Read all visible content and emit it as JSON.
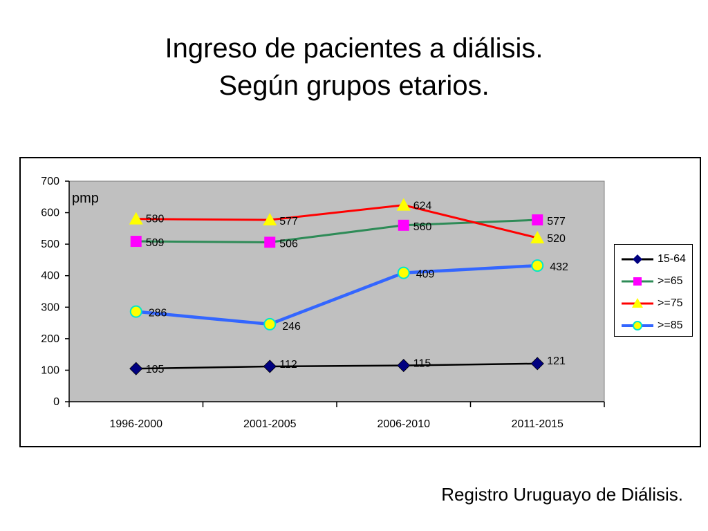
{
  "page": {
    "title_line1": "Ingreso de pacientes a diálisis.",
    "title_line2": "Según grupos etarios.",
    "source": "Registro Uruguayo de Diálisis."
  },
  "chart_data": {
    "type": "line",
    "ylabel": "pmp",
    "ylim": [
      0,
      700
    ],
    "yticks": [
      0,
      100,
      200,
      300,
      400,
      500,
      600,
      700
    ],
    "categories": [
      "1996-2000",
      "2001-2005",
      "2006-2010",
      "2011-2015"
    ],
    "grid": false,
    "legend_position": "right",
    "plot_background": "#c0c0c0",
    "series": [
      {
        "name": "15-64",
        "values": [
          105,
          112,
          115,
          121
        ],
        "color": "#000000",
        "marker": "diamond",
        "marker_color": "#000080"
      },
      {
        "name": ">=65",
        "values": [
          509,
          506,
          560,
          577
        ],
        "color": "#2e8b57",
        "marker": "square",
        "marker_color": "#ff00ff"
      },
      {
        "name": ">=75",
        "values": [
          580,
          577,
          624,
          520
        ],
        "color": "#ff0000",
        "marker": "triangle",
        "marker_color": "#ffff00"
      },
      {
        "name": ">=85",
        "values": [
          286,
          246,
          409,
          432
        ],
        "color": "#3366ff",
        "marker": "circle",
        "marker_color": "#ffff00",
        "marker_stroke": "#00e5cc"
      }
    ]
  }
}
